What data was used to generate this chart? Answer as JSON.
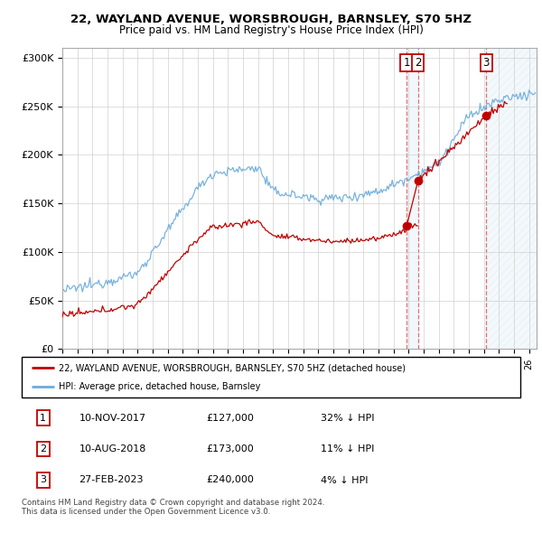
{
  "title": "22, WAYLAND AVENUE, WORSBROUGH, BARNSLEY, S70 5HZ",
  "subtitle": "Price paid vs. HM Land Registry's House Price Index (HPI)",
  "ylabel_ticks": [
    "£0",
    "£50K",
    "£100K",
    "£150K",
    "£200K",
    "£250K",
    "£300K"
  ],
  "ytick_vals": [
    0,
    50000,
    100000,
    150000,
    200000,
    250000,
    300000
  ],
  "ylim": [
    0,
    310000
  ],
  "xlim_start": 1995.0,
  "xlim_end": 2026.5,
  "hpi_color": "#6aabdc",
  "price_color": "#c00000",
  "vline_color": "#e06060",
  "sale1_x": 2017.87,
  "sale1_y": 127000,
  "sale1_label": "1",
  "sale2_x": 2018.62,
  "sale2_y": 173000,
  "sale2_label": "2",
  "sale3_x": 2023.16,
  "sale3_y": 240000,
  "sale3_label": "3",
  "legend_line1": "22, WAYLAND AVENUE, WORSBROUGH, BARNSLEY, S70 5HZ (detached house)",
  "legend_line2": "HPI: Average price, detached house, Barnsley",
  "table_rows": [
    [
      "1",
      "10-NOV-2017",
      "£127,000",
      "32% ↓ HPI"
    ],
    [
      "2",
      "10-AUG-2018",
      "£173,000",
      "11% ↓ HPI"
    ],
    [
      "3",
      "27-FEB-2023",
      "£240,000",
      "4% ↓ HPI"
    ]
  ],
  "footnote": "Contains HM Land Registry data © Crown copyright and database right 2024.\nThis data is licensed under the Open Government Licence v3.0.",
  "shaded_color": "#daeaf5",
  "hatch_color": "#c8d8e8",
  "background_color": "#ffffff"
}
